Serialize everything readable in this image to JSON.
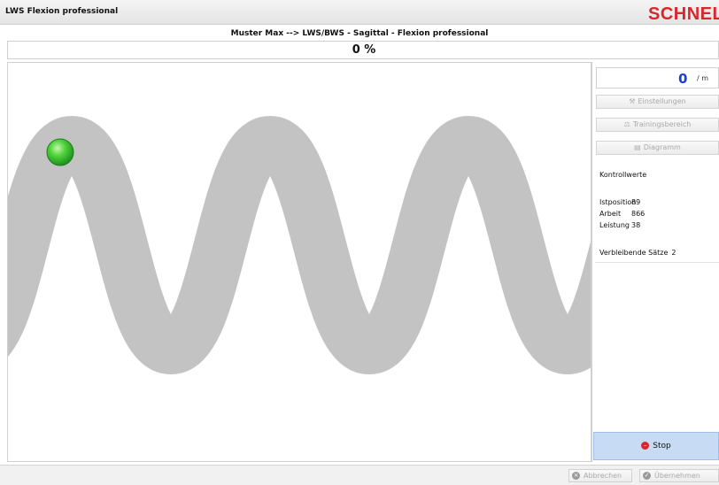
{
  "window": {
    "title": "LWS Flexion professional",
    "logo": "SCHNELL"
  },
  "header": {
    "subtitle": "Muster Max  -->  LWS/BWS - Sagittal - Flexion professional",
    "progress_text": "0 %",
    "progress": 0
  },
  "side_panel": {
    "counter_value": "0",
    "counter_unit": "/ m",
    "buttons": {
      "settings": "Einstellungen",
      "training_area": "Trainingsbereich",
      "diagram": "Diagramm"
    },
    "control_title": "Kontrollwerte",
    "metrics": [
      {
        "label": "Istposition",
        "value": "89"
      },
      {
        "label": "Arbeit",
        "value": "866"
      },
      {
        "label": "Leistung",
        "value": "38"
      }
    ],
    "remaining_label": "Verbleibende Sätze",
    "remaining_value": "2",
    "stop_label": "Stop"
  },
  "footer": {
    "cancel_label": "Abbrechen",
    "accept_label": "Übernehmen"
  },
  "colors": {
    "track": "#c3c3c3",
    "ball": "#2db82d",
    "accent_blue": "#1a3fd6",
    "brand_red": "#d9262b",
    "stop_bg": "#c7dcf4"
  },
  "icons": {
    "settings": "wrench-icon",
    "training_area": "scale-icon",
    "diagram": "chart-icon",
    "stop": "stop-icon",
    "cancel": "cancel-icon",
    "accept": "accept-icon"
  }
}
